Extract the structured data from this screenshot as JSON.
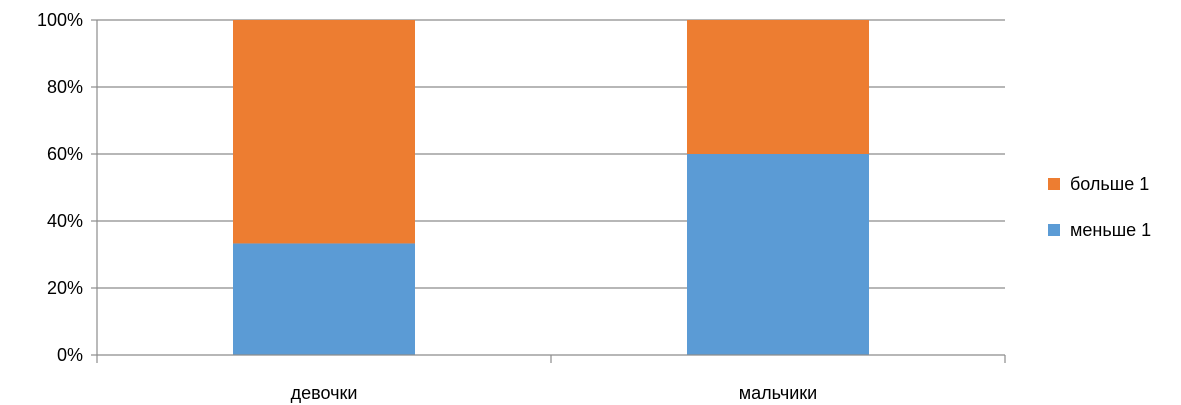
{
  "chart_data": {
    "type": "bar",
    "stacked": true,
    "percent": true,
    "categories": [
      "девочки",
      "мальчики"
    ],
    "series": [
      {
        "name": "меньше 1",
        "values": [
          33.3,
          60
        ],
        "color": "#5B9BD5"
      },
      {
        "name": "больше 1",
        "values": [
          66.7,
          40
        ],
        "color": "#ED7D31"
      }
    ],
    "ylim": [
      0,
      100
    ],
    "yticks": [
      "0%",
      "20%",
      "40%",
      "60%",
      "80%",
      "100%"
    ],
    "grid": true,
    "legend": "right",
    "title": "",
    "xlabel": "",
    "ylabel": ""
  }
}
